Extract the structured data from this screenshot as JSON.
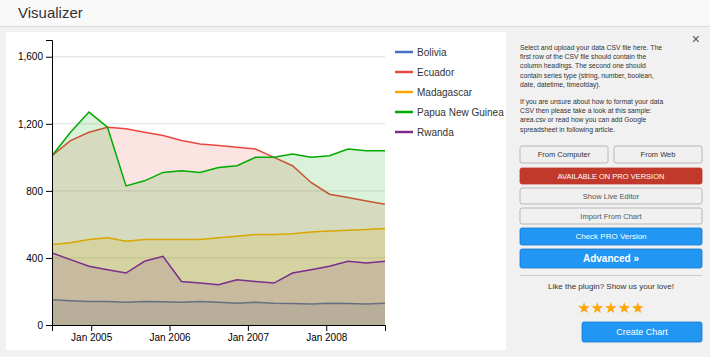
{
  "chart_data": {
    "type": "area",
    "title": "Visualizer",
    "x": [
      2004.5,
      2004.736111111111,
      2004.9722222222222,
      2005.2083333333333,
      2005.4444444444443,
      2005.6805555555557,
      2005.9166666666667,
      2006.1527777777778,
      2006.388888888889,
      2006.625,
      2006.861111111111,
      2007.0972222222222,
      2007.3333333333333,
      2007.5694444444443,
      2007.8055555555557,
      2008.0416666666667,
      2008.2777777777778,
      2008.513888888889,
      2008.75
    ],
    "xlim": [
      2004.5,
      2008.75
    ],
    "xticks": [
      {
        "value": 2005.0,
        "label": "Jan 2005"
      },
      {
        "value": 2006.0,
        "label": "Jan 2006"
      },
      {
        "value": 2007.0,
        "label": "Jan 2007"
      },
      {
        "value": 2008.0,
        "label": "Jan 2008"
      }
    ],
    "ylim": [
      0,
      1700
    ],
    "yticks": [
      0,
      400,
      800,
      {
        "value": 1200,
        "label": "1,200"
      },
      {
        "value": 1600,
        "label": "1,600"
      }
    ],
    "grid": true,
    "legend": "right",
    "series": [
      {
        "name": "Bolivia",
        "color": "#4472c4",
        "values": [
          150,
          145,
          140,
          140,
          135,
          140,
          138,
          135,
          140,
          135,
          130,
          135,
          130,
          128,
          125,
          130,
          128,
          125,
          130
        ]
      },
      {
        "name": "Ecuador",
        "color": "#e8473f",
        "values": [
          1010,
          1100,
          1150,
          1180,
          1170,
          1150,
          1130,
          1100,
          1080,
          1070,
          1060,
          1050,
          1000,
          950,
          850,
          780,
          760,
          740,
          720
        ]
      },
      {
        "name": "Madagascar",
        "color": "#FFA500",
        "values": [
          480,
          490,
          510,
          520,
          500,
          510,
          510,
          510,
          510,
          520,
          530,
          540,
          540,
          545,
          555,
          560,
          565,
          570,
          575
        ]
      },
      {
        "name": "Papua New Guinea",
        "color": "#00aa00",
        "values": [
          1010,
          1150,
          1270,
          1180,
          830,
          860,
          910,
          920,
          910,
          940,
          950,
          1000,
          1000,
          1020,
          1000,
          1010,
          1050,
          1040,
          1040
        ]
      },
      {
        "name": "Rwanda",
        "color": "#7B2D8B",
        "values": [
          430,
          390,
          350,
          330,
          310,
          380,
          410,
          260,
          250,
          240,
          270,
          260,
          250,
          310,
          330,
          350,
          380,
          370,
          380
        ]
      }
    ],
    "annotations": [
      "×",
      "Select and upload your data CSV file here. The\nfirst row of the CSV file should contain the\ncolumn headings. The second one should\ncontain series type (string, number, boolean,\ndate, datetime, timeofday).",
      "If you are unsure about how to format your data\nCSV then please take a look at this sample:\narea.csv or read how you can add Google\nspreadsheet in following article.",
      "From Computer",
      "From Web",
      "AVAILABLE ON PRO VERSION",
      "Show Live Editor",
      "Import From Chart",
      "Check PRO Version",
      "Advanced »",
      "Like the plugin? Show us your love!",
      "★★★★★",
      "Create Chart"
    ]
  }
}
